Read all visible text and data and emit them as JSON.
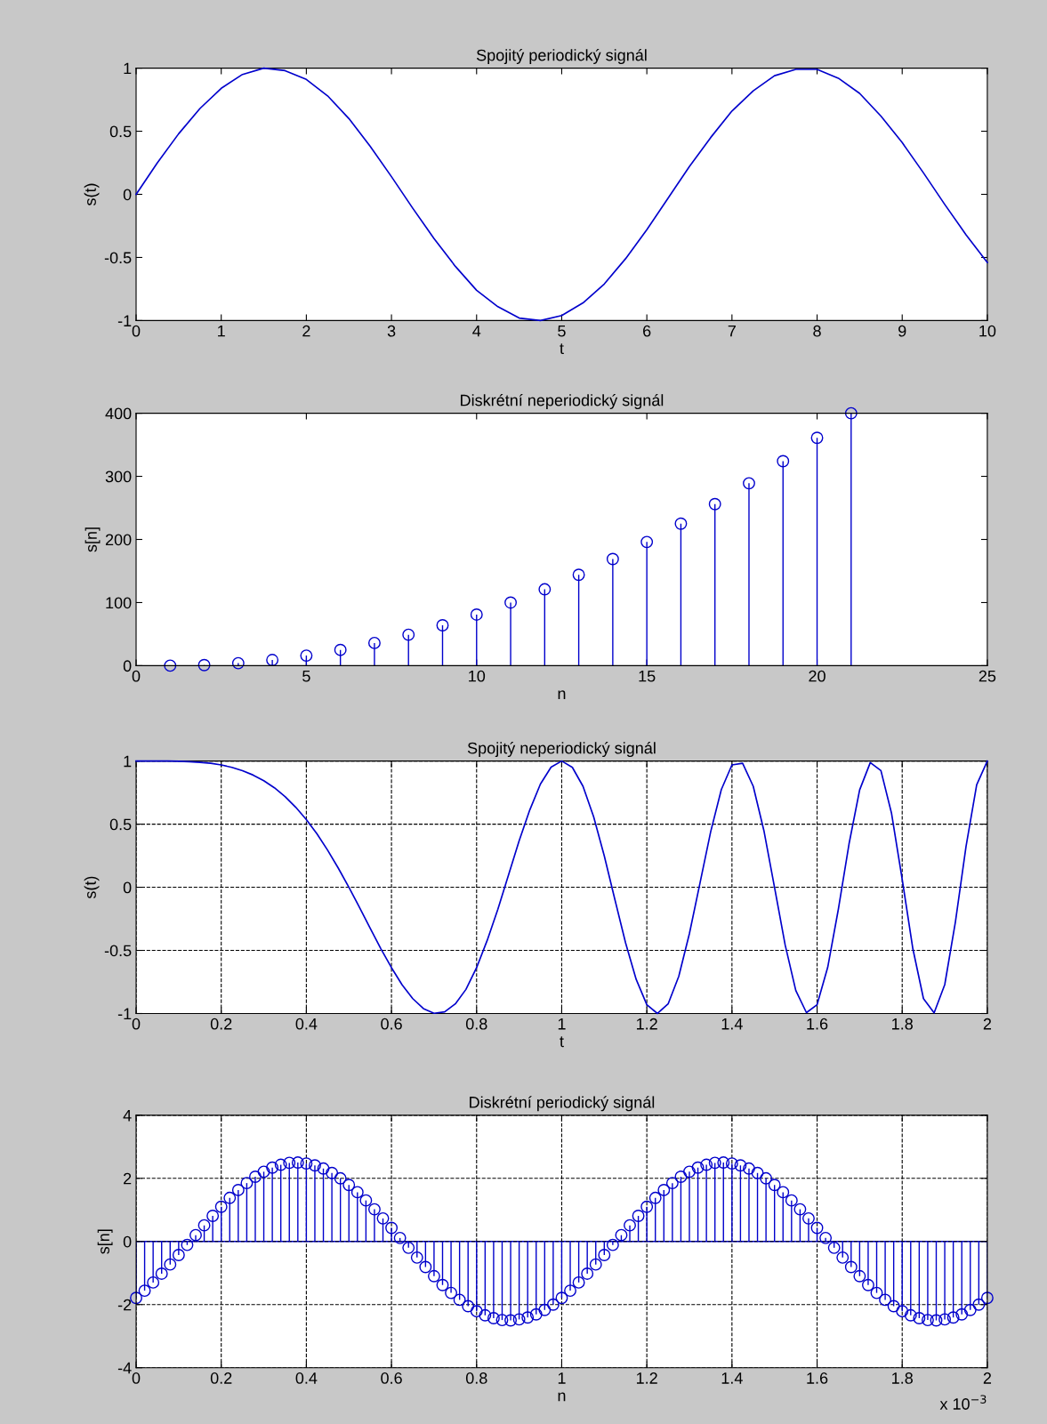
{
  "chart_data": [
    {
      "type": "line",
      "title": "Spojitý periodický signál",
      "xlabel": "t",
      "ylabel": "s(t)",
      "xlim": [
        0,
        10
      ],
      "xticks": [
        0,
        1,
        2,
        3,
        4,
        5,
        6,
        7,
        8,
        9,
        10
      ],
      "ylim": [
        -1,
        1
      ],
      "yticks": [
        -1,
        -0.5,
        0,
        0.5,
        1
      ],
      "grid": false,
      "series": [
        {
          "color": "#0000cc",
          "x": [
            0,
            0.25,
            0.5,
            0.75,
            1,
            1.25,
            1.5,
            1.75,
            2,
            2.25,
            2.5,
            2.75,
            3,
            3.25,
            3.5,
            3.75,
            4,
            4.25,
            4.5,
            4.75,
            5,
            5.25,
            5.5,
            5.75,
            6,
            6.25,
            6.5,
            6.75,
            7,
            7.25,
            7.5,
            7.75,
            8,
            8.25,
            8.5,
            8.75,
            9,
            9.25,
            9.5,
            9.75,
            10
          ],
          "values": [
            0,
            0.25,
            0.48,
            0.68,
            0.84,
            0.95,
            1.0,
            0.98,
            0.91,
            0.78,
            0.6,
            0.38,
            0.14,
            -0.11,
            -0.35,
            -0.57,
            -0.76,
            -0.89,
            -0.98,
            -1.0,
            -0.96,
            -0.86,
            -0.71,
            -0.51,
            -0.28,
            -0.03,
            0.22,
            0.45,
            0.66,
            0.82,
            0.94,
            0.99,
            0.99,
            0.92,
            0.8,
            0.62,
            0.41,
            0.17,
            -0.08,
            -0.32,
            -0.54
          ]
        }
      ]
    },
    {
      "type": "lollipop",
      "title": "Diskrétní neperiodický signál",
      "xlabel": "n",
      "ylabel": "s[n]",
      "xlim": [
        0,
        25
      ],
      "xticks": [
        0,
        5,
        10,
        15,
        20,
        25
      ],
      "ylim": [
        0,
        400
      ],
      "yticks": [
        0,
        100,
        200,
        300,
        400
      ],
      "grid": false,
      "marker": "circle",
      "series": [
        {
          "color": "#0000cc",
          "x": [
            1,
            2,
            3,
            4,
            5,
            6,
            7,
            8,
            9,
            10,
            11,
            12,
            13,
            14,
            15,
            16,
            17,
            18,
            19,
            20,
            21
          ],
          "values": [
            0,
            1,
            4,
            9,
            16,
            25,
            36,
            49,
            64,
            81,
            100,
            121,
            144,
            169,
            196,
            225,
            256,
            289,
            324,
            361,
            400
          ]
        }
      ]
    },
    {
      "type": "line",
      "title": "Spojitý neperiodický signál",
      "xlabel": "t",
      "ylabel": "s(t)",
      "xlim": [
        0,
        2
      ],
      "xticks": [
        0,
        0.2,
        0.4,
        0.6,
        0.8,
        1,
        1.2,
        1.4,
        1.6,
        1.8,
        2
      ],
      "ylim": [
        -1,
        1
      ],
      "yticks": [
        -1,
        -0.5,
        0,
        0.5,
        1
      ],
      "grid": true,
      "series": [
        {
          "color": "#0000cc",
          "x": [
            0,
            0.025,
            0.05,
            0.075,
            0.1,
            0.125,
            0.15,
            0.175,
            0.2,
            0.225,
            0.25,
            0.275,
            0.3,
            0.325,
            0.35,
            0.375,
            0.4,
            0.425,
            0.45,
            0.475,
            0.5,
            0.525,
            0.55,
            0.575,
            0.6,
            0.625,
            0.65,
            0.675,
            0.7,
            0.725,
            0.75,
            0.775,
            0.8,
            0.825,
            0.85,
            0.875,
            0.9,
            0.925,
            0.95,
            0.975,
            1,
            1.025,
            1.05,
            1.075,
            1.1,
            1.125,
            1.15,
            1.175,
            1.2,
            1.225,
            1.25,
            1.275,
            1.3,
            1.325,
            1.35,
            1.375,
            1.4,
            1.425,
            1.45,
            1.475,
            1.5,
            1.525,
            1.55,
            1.575,
            1.6,
            1.625,
            1.65,
            1.675,
            1.7,
            1.725,
            1.75,
            1.775,
            1.8,
            1.825,
            1.85,
            1.875,
            1.9,
            1.925,
            1.95,
            1.975,
            2
          ],
          "values": [
            1,
            1,
            1,
            1,
            0.998,
            0.995,
            0.99,
            0.982,
            0.969,
            0.95,
            0.924,
            0.889,
            0.844,
            0.788,
            0.718,
            0.634,
            0.536,
            0.423,
            0.294,
            0.152,
            0,
            -0.16,
            -0.324,
            -0.486,
            -0.637,
            -0.773,
            -0.882,
            -0.961,
            -0.998,
            -0.987,
            -0.924,
            -0.809,
            -0.637,
            -0.42,
            -0.174,
            0.097,
            0.368,
            0.613,
            0.818,
            0.952,
            1,
            0.95,
            0.8,
            0.559,
            0.249,
            -0.098,
            -0.44,
            -0.73,
            -0.93,
            -1,
            -0.924,
            -0.706,
            -0.368,
            0.035,
            0.44,
            0.774,
            0.969,
            0.982,
            0.8,
            0.45,
            0,
            -0.457,
            -0.818,
            -0.993,
            -0.93,
            -0.634,
            -0.174,
            0.342,
            0.771,
            0.988,
            0.924,
            0.585,
            0.063,
            -0.486,
            -0.882,
            -0.995,
            -0.771,
            -0.275,
            0.324,
            0.811,
            1
          ]
        }
      ]
    },
    {
      "type": "lollipop",
      "title": "Diskrétní periodický signál",
      "xlabel": "n",
      "ylabel": "s[n]",
      "xlim": [
        0,
        2
      ],
      "xticks": [
        0,
        0.2,
        0.4,
        0.6,
        0.8,
        1,
        1.2,
        1.4,
        1.6,
        1.8,
        2
      ],
      "ylim": [
        -4,
        4
      ],
      "yticks": [
        -4,
        -2,
        0,
        2,
        4
      ],
      "grid": true,
      "marker": "circle",
      "annotations": [
        "x 10$^{−3}$"
      ],
      "ref_lines": [
        {
          "axis": "y",
          "value": 0,
          "color": "#0000cc"
        }
      ],
      "series": [
        {
          "color": "#0000cc",
          "x": [
            0,
            0.02,
            0.04,
            0.06,
            0.08,
            0.1,
            0.12,
            0.14,
            0.16,
            0.18,
            0.2,
            0.22,
            0.24,
            0.26,
            0.28,
            0.3,
            0.32,
            0.34,
            0.36,
            0.38,
            0.4,
            0.42,
            0.44,
            0.46,
            0.48,
            0.5,
            0.52,
            0.54,
            0.56,
            0.58,
            0.6,
            0.62,
            0.64,
            0.66,
            0.68,
            0.7,
            0.72,
            0.74,
            0.76,
            0.78,
            0.8,
            0.82,
            0.84,
            0.86,
            0.88,
            0.9,
            0.92,
            0.94,
            0.96,
            0.98,
            1,
            1.02,
            1.04,
            1.06,
            1.08,
            1.1,
            1.12,
            1.14,
            1.16,
            1.18,
            1.2,
            1.22,
            1.24,
            1.26,
            1.28,
            1.3,
            1.32,
            1.34,
            1.36,
            1.38,
            1.4,
            1.42,
            1.44,
            1.46,
            1.48,
            1.5,
            1.52,
            1.54,
            1.56,
            1.58,
            1.6,
            1.62,
            1.64,
            1.66,
            1.68,
            1.7,
            1.72,
            1.74,
            1.76,
            1.78,
            1.8,
            1.82,
            1.84,
            1.86,
            1.88,
            1.9,
            1.92,
            1.94,
            1.96,
            1.98,
            2
          ],
          "values": [
            -1.79,
            -1.56,
            -1.3,
            -1.02,
            -0.73,
            -0.43,
            -0.11,
            0.2,
            0.51,
            0.81,
            1.1,
            1.38,
            1.63,
            1.85,
            2.05,
            2.21,
            2.34,
            2.43,
            2.49,
            2.5,
            2.47,
            2.41,
            2.31,
            2.17,
            2.0,
            1.79,
            1.56,
            1.3,
            1.02,
            0.73,
            0.43,
            0.11,
            -0.2,
            -0.51,
            -0.81,
            -1.1,
            -1.38,
            -1.63,
            -1.85,
            -2.05,
            -2.21,
            -2.34,
            -2.43,
            -2.49,
            -2.5,
            -2.47,
            -2.41,
            -2.31,
            -2.17,
            -2.0,
            -1.79,
            -1.56,
            -1.3,
            -1.02,
            -0.73,
            -0.43,
            -0.11,
            0.2,
            0.51,
            0.81,
            1.1,
            1.38,
            1.63,
            1.85,
            2.05,
            2.21,
            2.34,
            2.43,
            2.49,
            2.5,
            2.47,
            2.41,
            2.31,
            2.17,
            2.0,
            1.79,
            1.56,
            1.3,
            1.02,
            0.73,
            0.43,
            0.11,
            -0.2,
            -0.51,
            -0.81,
            -1.1,
            -1.38,
            -1.63,
            -1.85,
            -2.05,
            -2.21,
            -2.34,
            -2.43,
            -2.49,
            -2.5,
            -2.47,
            -2.41,
            -2.31,
            -2.17,
            -2.0,
            -1.79
          ]
        }
      ]
    }
  ]
}
